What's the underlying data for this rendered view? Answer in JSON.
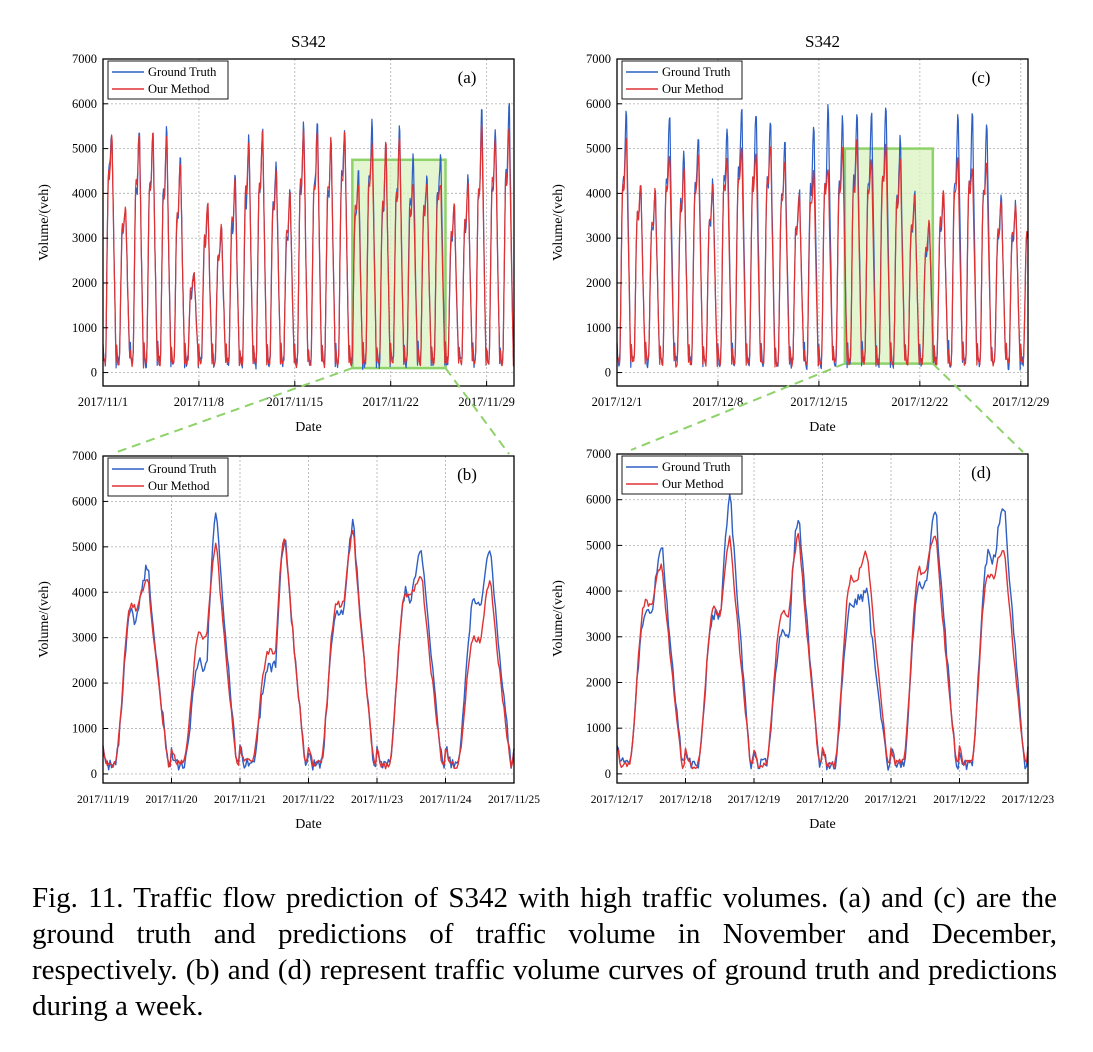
{
  "figure": {
    "caption": "Fig. 11.  Traffic flow prediction of S342 with high traffic volumes. (a) and (c) are the ground truth and predictions of traffic volume in November and December, respectively. (b) and (d) represent traffic volume curves of ground truth and predictions during a week."
  },
  "colors": {
    "ground_truth": "#2d5fc4",
    "our_method": "#e03232",
    "highlight": "#8ed26a",
    "grid": "#b8b8b8"
  },
  "chart_data": [
    {
      "id": "a",
      "type": "line",
      "title": "S342",
      "panel_label": "(a)",
      "xlabel": "Date",
      "ylabel": "Volume/(veh)",
      "ylim": [
        -300,
        7000
      ],
      "yticks": [
        0,
        1000,
        2000,
        3000,
        4000,
        5000,
        6000,
        7000
      ],
      "xticks": [
        "2017/11/1",
        "2017/11/8",
        "2017/11/15",
        "2017/11/22",
        "2017/11/29"
      ],
      "xrange_days": [
        0,
        30
      ],
      "grid": true,
      "legend": "top-left",
      "highlight_days": [
        18.2,
        25
      ],
      "highlight_volume": [
        100,
        4750
      ],
      "series": [
        {
          "name": "Ground Truth",
          "daily_peaks": [
            5400,
            3700,
            5500,
            5400,
            5500,
            4900,
            2200,
            3800,
            3200,
            4400,
            5300,
            5500,
            4700,
            4200,
            5700,
            5700,
            5200,
            5500,
            4600,
            5700,
            5200,
            5500,
            4900,
            4400,
            4900,
            3700,
            4400,
            6000,
            5500,
            6150
          ],
          "daily_secondary": [
            4600,
            3200,
            4200,
            4300,
            4100,
            3500,
            1800,
            3000,
            2600,
            3300,
            4000,
            4200,
            3800,
            3100,
            4200,
            4300,
            4000,
            4400,
            3600,
            4300,
            3700,
            4000,
            3800,
            3600,
            4100,
            3000,
            3300,
            4000,
            4200,
            4500
          ]
        },
        {
          "name": "Our Method",
          "daily_peaks": [
            5300,
            3750,
            5400,
            5350,
            5400,
            4800,
            2300,
            3850,
            3300,
            4300,
            5200,
            5400,
            4600,
            4100,
            5500,
            5500,
            5300,
            5400,
            4200,
            5100,
            5200,
            5300,
            4300,
            4300,
            4200,
            3800,
            4300,
            5600,
            5300,
            5500
          ],
          "daily_secondary": [
            4500,
            3300,
            4300,
            4200,
            4000,
            3600,
            1900,
            3100,
            2700,
            3400,
            4100,
            4300,
            3700,
            3200,
            4300,
            4200,
            4100,
            4300,
            3700,
            4300,
            3800,
            4100,
            3600,
            3700,
            3900,
            3100,
            3400,
            4100,
            4300,
            4400
          ]
        }
      ]
    },
    {
      "id": "b",
      "type": "line",
      "panel_label": "(b)",
      "xlabel": "Date",
      "ylabel": "Volume/(veh)",
      "ylim": [
        -200,
        7000
      ],
      "yticks": [
        0,
        1000,
        2000,
        3000,
        4000,
        5000,
        6000,
        7000
      ],
      "xticks": [
        "2017/11/19",
        "2017/11/20",
        "2017/11/21",
        "2017/11/22",
        "2017/11/23",
        "2017/11/24",
        "2017/11/25"
      ],
      "xrange_days": [
        0,
        6
      ],
      "grid": true,
      "legend": "top-left",
      "series": [
        {
          "name": "Ground Truth",
          "daily_peaks": [
            4550,
            5700,
            5200,
            5500,
            4850,
            4880
          ],
          "daily_secondary": [
            3600,
            2500,
            2400,
            3600,
            4000,
            3800
          ]
        },
        {
          "name": "Our Method",
          "daily_peaks": [
            4300,
            5050,
            5250,
            5300,
            4300,
            4200
          ],
          "daily_secondary": [
            3750,
            3150,
            2700,
            3800,
            4000,
            3000
          ]
        }
      ]
    },
    {
      "id": "c",
      "type": "line",
      "title": "S342",
      "panel_label": "(c)",
      "xlabel": "Date",
      "ylabel": "Volume/(veh)",
      "ylim": [
        -300,
        7000
      ],
      "yticks": [
        0,
        1000,
        2000,
        3000,
        4000,
        5000,
        6000,
        7000
      ],
      "xticks": [
        "2017/12/1",
        "2017/12/8",
        "2017/12/15",
        "2017/12/22",
        "2017/12/29"
      ],
      "xrange_days": [
        0,
        28.5
      ],
      "grid": true,
      "legend": "top-left",
      "highlight_days": [
        15.8,
        21.9
      ],
      "highlight_volume": [
        200,
        5000
      ],
      "series": [
        {
          "name": "Ground Truth",
          "daily_peaks": [
            5900,
            4300,
            4100,
            5850,
            4900,
            5300,
            4300,
            5500,
            5950,
            5900,
            5700,
            5200,
            4100,
            5550,
            6050,
            5750,
            5950,
            5900,
            6100,
            5300,
            4100,
            3300,
            4000,
            5950,
            5800,
            5600,
            3900,
            3800,
            3700
          ],
          "daily_secondary": [
            4300,
            3500,
            3200,
            4400,
            3800,
            4200,
            3400,
            4300,
            4500,
            4400,
            4300,
            4000,
            3300,
            4100,
            4300,
            4200,
            4300,
            4300,
            4500,
            4000,
            3200,
            2700,
            3300,
            4300,
            4300,
            4100,
            3100,
            3100,
            3000
          ]
        },
        {
          "name": "Our Method",
          "daily_peaks": [
            5300,
            4200,
            4100,
            4900,
            4600,
            5000,
            4300,
            4800,
            5000,
            4900,
            5100,
            4800,
            4000,
            4500,
            4500,
            5100,
            5200,
            4800,
            5100,
            4800,
            4000,
            3400,
            4100,
            4800,
            4600,
            4700,
            3900,
            3800,
            3600
          ],
          "daily_secondary": [
            4200,
            3600,
            3300,
            4200,
            3700,
            4100,
            3500,
            4200,
            4300,
            4300,
            4300,
            3900,
            3300,
            3800,
            4200,
            4100,
            4200,
            4100,
            4300,
            3900,
            3300,
            2800,
            3400,
            4100,
            4200,
            4000,
            3200,
            3200,
            3100
          ]
        }
      ]
    },
    {
      "id": "d",
      "type": "line",
      "panel_label": "(d)",
      "xlabel": "Date",
      "ylabel": "Volume/(veh)",
      "ylim": [
        -200,
        7000
      ],
      "yticks": [
        0,
        1000,
        2000,
        3000,
        4000,
        5000,
        6000,
        7000
      ],
      "xticks": [
        "2017/12/17",
        "2017/12/18",
        "2017/12/19",
        "2017/12/20",
        "2017/12/21",
        "2017/12/22",
        "2017/12/23"
      ],
      "xrange_days": [
        0,
        6
      ],
      "grid": true,
      "legend": "top-left",
      "series": [
        {
          "name": "Ground Truth",
          "daily_peaks": [
            5000,
            6050,
            5700,
            3950,
            5750,
            5850
          ],
          "daily_secondary": [
            3600,
            3500,
            3200,
            3800,
            4200,
            4800
          ]
        },
        {
          "name": "Our Method",
          "daily_peaks": [
            4550,
            5150,
            5250,
            4850,
            5200,
            4950
          ],
          "daily_secondary": [
            3800,
            3600,
            3600,
            4300,
            4500,
            4400
          ]
        }
      ]
    }
  ]
}
